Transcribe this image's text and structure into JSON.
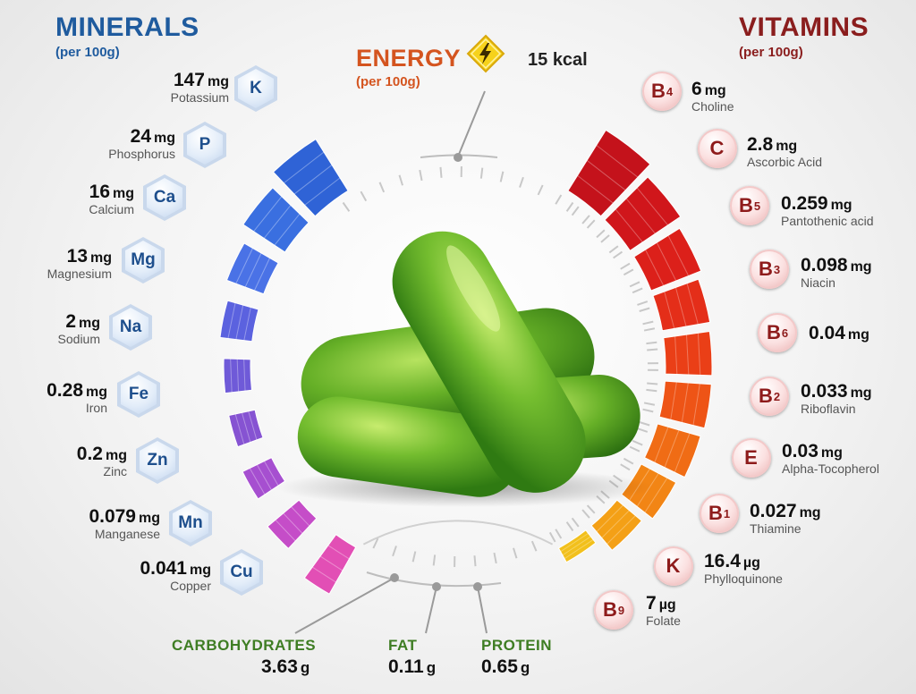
{
  "minerals": {
    "title": "MINERALS",
    "subtitle": "(per 100g)",
    "items": [
      {
        "symbol": "K",
        "amount": "147",
        "unit": "mg",
        "name": "Potassium"
      },
      {
        "symbol": "P",
        "amount": "24",
        "unit": "mg",
        "name": "Phosphorus"
      },
      {
        "symbol": "Ca",
        "amount": "16",
        "unit": "mg",
        "name": "Calcium"
      },
      {
        "symbol": "Mg",
        "amount": "13",
        "unit": "mg",
        "name": "Magnesium"
      },
      {
        "symbol": "Na",
        "amount": "2",
        "unit": "mg",
        "name": "Sodium"
      },
      {
        "symbol": "Fe",
        "amount": "0.28",
        "unit": "mg",
        "name": "Iron"
      },
      {
        "symbol": "Zn",
        "amount": "0.2",
        "unit": "mg",
        "name": "Zinc"
      },
      {
        "symbol": "Mn",
        "amount": "0.079",
        "unit": "mg",
        "name": "Manganese"
      },
      {
        "symbol": "Cu",
        "amount": "0.041",
        "unit": "mg",
        "name": "Copper"
      }
    ]
  },
  "vitamins": {
    "title": "VITAMINS",
    "subtitle": "(per 100g)",
    "items": [
      {
        "letter": "B",
        "sub": "4",
        "amount": "6",
        "unit": "mg",
        "name": "Choline"
      },
      {
        "letter": "C",
        "sub": "",
        "amount": "2.8",
        "unit": "mg",
        "name": "Ascorbic Acid"
      },
      {
        "letter": "B",
        "sub": "5",
        "amount": "0.259",
        "unit": "mg",
        "name": "Pantothenic acid"
      },
      {
        "letter": "B",
        "sub": "3",
        "amount": "0.098",
        "unit": "mg",
        "name": "Niacin"
      },
      {
        "letter": "B",
        "sub": "6",
        "amount": "0.04",
        "unit": "mg",
        "name": ""
      },
      {
        "letter": "B",
        "sub": "2",
        "amount": "0.033",
        "unit": "mg",
        "name": "Riboflavin"
      },
      {
        "letter": "E",
        "sub": "",
        "amount": "0.03",
        "unit": "mg",
        "name": "Alpha-Tocopherol"
      },
      {
        "letter": "B",
        "sub": "1",
        "amount": "0.027",
        "unit": "mg",
        "name": "Thiamine"
      },
      {
        "letter": "K",
        "sub": "",
        "amount": "16.4",
        "unit": "µg",
        "name": "Phylloquinone"
      },
      {
        "letter": "B",
        "sub": "9",
        "amount": "7",
        "unit": "µg",
        "name": "Folate"
      }
    ]
  },
  "energy": {
    "title": "ENERGY",
    "subtitle": "(per 100g)",
    "value": "15",
    "unit": "kcal",
    "icon": "lightning-icon"
  },
  "macros": [
    {
      "label": "CARBOHYDRATES",
      "value": "3.63",
      "unit": "g"
    },
    {
      "label": "FAT",
      "value": "0.11",
      "unit": "g"
    },
    {
      "label": "PROTEIN",
      "value": "0.65",
      "unit": "g"
    }
  ],
  "colors": {
    "minerals_title": "#1f5b9e",
    "vitamins_title": "#8a1d1d",
    "energy_title": "#d4541f",
    "macro_label": "#3e7d23",
    "cucumber": "#6cb42c"
  }
}
